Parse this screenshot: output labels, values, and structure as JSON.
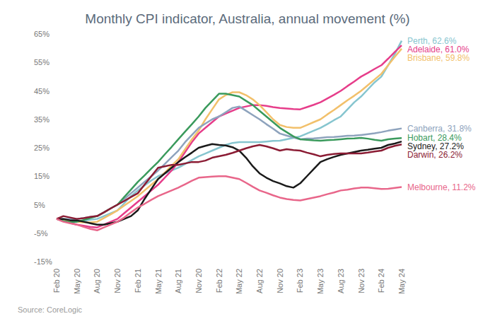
{
  "chart_data": {
    "type": "line",
    "title": "Monthly CPI indicator, Australia, annual movement (%)",
    "annotations": [
      "Source: CoreLogic"
    ],
    "categories": [
      "Feb 20",
      null,
      null,
      "May 20",
      null,
      null,
      "Aug 20",
      null,
      null,
      "Nov 20",
      null,
      null,
      "Feb 21",
      null,
      null,
      "May 21",
      null,
      null,
      "Aug 21",
      null,
      null,
      "Nov 20",
      null,
      null,
      "Feb 22",
      null,
      null,
      "May 22",
      null,
      null,
      "Aug 22",
      null,
      null,
      "Nov 20",
      null,
      null,
      "Feb 23",
      null,
      null,
      "May 23",
      null,
      null,
      "Aug 23",
      null,
      null,
      "Nov 23",
      null,
      null,
      "Feb 24",
      null,
      null,
      "May 24"
    ],
    "ylim": [
      -15,
      65
    ],
    "yticks": [
      {
        "value": -15,
        "label": "-15%"
      },
      {
        "value": -5,
        "label": "-5%"
      },
      {
        "value": 5,
        "label": "5%"
      },
      {
        "value": 15,
        "label": "15%"
      },
      {
        "value": 25,
        "label": "25%"
      },
      {
        "value": 35,
        "label": "35%"
      },
      {
        "value": 45,
        "label": "45%"
      },
      {
        "value": 55,
        "label": "55%"
      },
      {
        "value": 65,
        "label": "65%"
      }
    ],
    "grid": false,
    "series": [
      {
        "name": "Perth",
        "color": "#86c5cf",
        "end_label": "Perth, 62.6%",
        "values": [
          0,
          -0.5,
          -1,
          -1,
          -0.7,
          -0.3,
          0,
          1,
          2,
          3,
          5.5,
          8,
          10,
          11.8,
          13.5,
          15,
          16,
          17,
          18,
          19.3,
          20.7,
          22,
          23,
          24,
          25,
          26,
          26.7,
          27,
          27,
          27,
          27,
          27.2,
          27.4,
          27.5,
          28,
          28.5,
          29,
          30,
          31,
          32,
          33.3,
          34.7,
          36,
          38.5,
          41,
          43,
          45.5,
          48,
          50,
          54,
          58,
          62.6
        ]
      },
      {
        "name": "Adelaide",
        "color": "#e63d8a",
        "end_label": "Adelaide, 61.0%",
        "values": [
          0,
          -0.7,
          -1.4,
          -2,
          -2.4,
          -2.8,
          -3,
          -2,
          -1,
          0,
          2,
          4,
          6,
          8,
          10,
          12,
          14.5,
          17,
          20,
          23.5,
          27,
          30,
          32,
          34,
          36,
          37,
          38,
          39,
          39.5,
          40,
          40,
          39.7,
          39.3,
          39,
          38.8,
          38.6,
          38.5,
          39.3,
          40.1,
          41,
          42.3,
          43.6,
          45,
          46.7,
          48.3,
          50,
          51.3,
          52.7,
          54,
          56.3,
          58.7,
          61
        ]
      },
      {
        "name": "Brisbane",
        "color": "#f2c06b",
        "end_label": "Brisbane, 59.8%",
        "values": [
          0,
          -0.5,
          -0.8,
          -1,
          -1.2,
          -1.2,
          -1,
          0.3,
          1.6,
          3,
          4.7,
          6.3,
          8,
          10,
          12,
          14,
          16.3,
          18.7,
          21,
          24.5,
          28,
          31,
          35,
          38.5,
          42,
          43.5,
          44.5,
          44.5,
          43.5,
          42,
          40,
          37.5,
          35,
          33,
          32.3,
          32,
          32,
          33,
          34,
          35,
          36.7,
          38.3,
          40,
          41.7,
          43.3,
          45,
          47,
          49,
          51,
          54,
          57,
          59.8
        ]
      },
      {
        "name": "Canberra",
        "color": "#8ea3bd",
        "end_label": "Canberra, 31.8%",
        "values": [
          0,
          0,
          0,
          0,
          0.3,
          0.7,
          1,
          2.3,
          3.7,
          5,
          7,
          9,
          11,
          13,
          15,
          17,
          19.3,
          21.7,
          24,
          27,
          29.5,
          32,
          33.5,
          35,
          36,
          37.5,
          39,
          39.5,
          38,
          36.5,
          35,
          33.3,
          31.7,
          30,
          29.3,
          28.6,
          28,
          28.2,
          28.3,
          28.5,
          28.7,
          28.8,
          29,
          29.2,
          29.3,
          29.5,
          29.8,
          30.1,
          30.5,
          31,
          31.4,
          31.8
        ]
      },
      {
        "name": "Hobart",
        "color": "#3a9a5c",
        "end_label": "Hobart, 28.4%",
        "values": [
          0,
          -0.7,
          -1.2,
          -1,
          -0.4,
          0.3,
          1,
          2.3,
          3.7,
          5,
          7.7,
          10.3,
          13,
          15.3,
          17.7,
          20,
          22.7,
          25.3,
          28,
          30.7,
          33.3,
          36,
          39,
          41.5,
          44,
          44,
          43.5,
          43,
          41.5,
          40,
          38,
          36,
          34,
          32,
          30.5,
          29,
          28,
          27.8,
          27.6,
          27.5,
          27.7,
          27.8,
          28,
          28.2,
          28.3,
          28.5,
          28.2,
          27.8,
          27.5,
          28,
          28.2,
          28.4
        ]
      },
      {
        "name": "Sydney",
        "color": "#1a1a1a",
        "end_label": "Sydney, 27.2%",
        "values": [
          0,
          0,
          -0.5,
          -0.5,
          -1,
          -1.5,
          -2,
          -2,
          -1.5,
          -1,
          0,
          1,
          3,
          7,
          10.5,
          14,
          16,
          18,
          20,
          21.7,
          23.3,
          25,
          25.7,
          26.3,
          26,
          25.8,
          25.2,
          24,
          21.5,
          18.5,
          16,
          14.5,
          13.3,
          12.5,
          11.5,
          11,
          12.5,
          15,
          17.5,
          20,
          21,
          21.8,
          22.5,
          23,
          23.5,
          24,
          24.3,
          24.7,
          25,
          26,
          26.5,
          27.2
        ]
      },
      {
        "name": "Darwin",
        "color": "#8b1c34",
        "end_label": "Darwin, 26.2%",
        "values": [
          0,
          1,
          0.5,
          0,
          0.3,
          0.7,
          1,
          2.3,
          3.7,
          5,
          6.3,
          7.7,
          9,
          12,
          15,
          18,
          18.5,
          19,
          19,
          19.5,
          20,
          20,
          20.5,
          21.5,
          22,
          22.5,
          23.2,
          24,
          24.8,
          25.5,
          26,
          25.5,
          24.8,
          24,
          24.5,
          24.2,
          24,
          23.3,
          22.7,
          22,
          22.5,
          22.8,
          23,
          23,
          23,
          23,
          23.3,
          23.7,
          24,
          25,
          25.7,
          26.2
        ]
      },
      {
        "name": "Melbourne",
        "color": "#e8668a",
        "end_label": "Melbourne, 11.2%",
        "values": [
          0,
          -1,
          -1.5,
          -2,
          -2.8,
          -3.5,
          -4,
          -3,
          -2,
          -1,
          0.5,
          2.3,
          4,
          5.3,
          6.7,
          8,
          9,
          10,
          11,
          12.2,
          13.4,
          14.5,
          14.7,
          14.9,
          15,
          15,
          14.5,
          14,
          12.7,
          11.3,
          10,
          9.2,
          8.3,
          7.5,
          7,
          6.7,
          6.5,
          7,
          7.5,
          8,
          8.7,
          9.3,
          10,
          10.3,
          10.7,
          11,
          11,
          10.8,
          10.5,
          10.6,
          10.9,
          11.2
        ]
      }
    ]
  }
}
